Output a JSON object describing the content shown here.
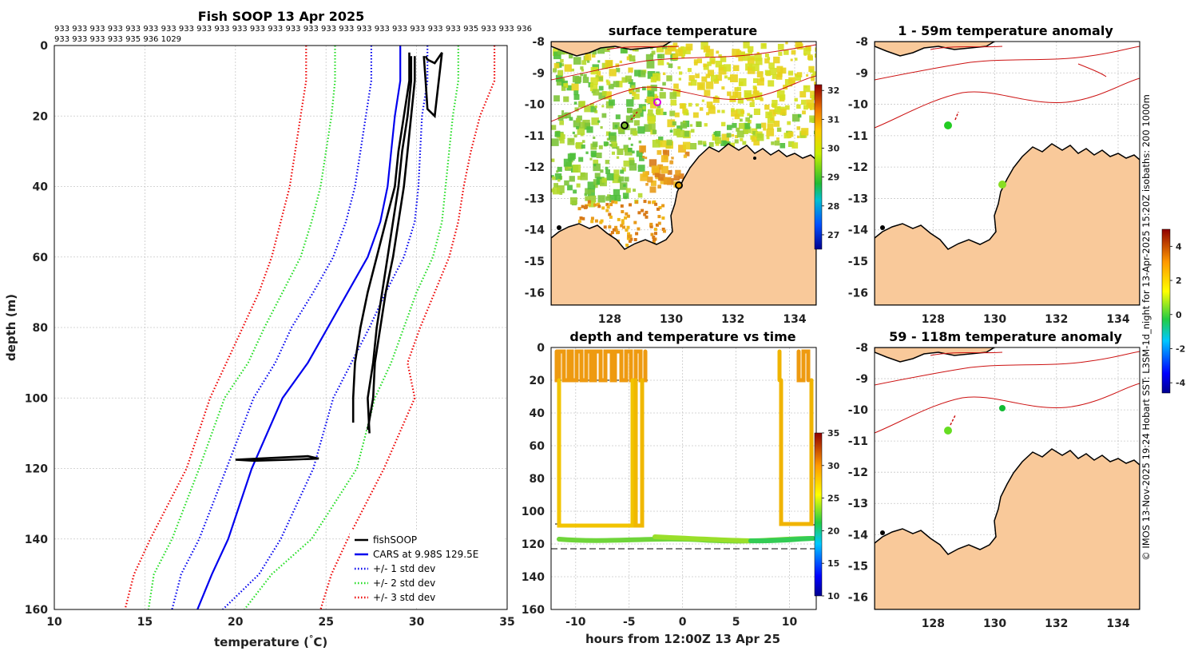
{
  "chart_data": [
    {
      "type": "line",
      "title": "Fish SOOP 13 Apr 2025",
      "profile_ids": [
        "933 933 933 933 933 933 933 933 933 933 933 933 933 933 933 933 933 933 933 933 933 933 933 935 933 933 936",
        "933 933 933 933 935 936 1029"
      ],
      "xlabel": "temperature",
      "xlabel_unit": "(°C)",
      "ylabel": "depth (m)",
      "xlim": [
        10,
        35
      ],
      "ylim": [
        0,
        160
      ],
      "xticks": [
        10,
        15,
        20,
        25,
        30,
        35
      ],
      "yticks": [
        0,
        20,
        40,
        60,
        80,
        100,
        120,
        140,
        160
      ],
      "legend": [
        "fishSOOP",
        "CARS at 9.98S 129.5E",
        "+/- 1 std dev",
        "+/- 2 std dev",
        "+/- 3 std dev"
      ],
      "series": [
        {
          "name": "CARS at 9.98S 129.5E",
          "color": "#0000ee",
          "style": "solid",
          "x": [
            29.1,
            29.1,
            28.8,
            28.6,
            28.4,
            28.0,
            27.3,
            26.2,
            25.1,
            24.0,
            22.6,
            20.9,
            19.6,
            18.7,
            17.9
          ],
          "y": [
            0,
            10,
            20,
            30,
            40,
            50,
            60,
            70,
            80,
            90,
            100,
            120,
            140,
            150,
            160
          ]
        },
        {
          "name": "+1 std",
          "color": "#0000ee",
          "style": "dotted",
          "x": [
            27.5,
            27.5,
            27.2,
            26.9,
            26.6,
            26.1,
            25.4,
            24.3,
            23.1,
            22.2,
            21.0,
            19.5,
            18.0,
            17.0,
            16.5
          ],
          "y": [
            0,
            10,
            20,
            30,
            40,
            50,
            60,
            70,
            80,
            90,
            100,
            120,
            140,
            150,
            160
          ]
        },
        {
          "name": "-1 std",
          "color": "#0000ee",
          "style": "dotted",
          "x": [
            30.6,
            30.6,
            30.3,
            30.2,
            30.1,
            29.9,
            29.3,
            28.3,
            27.4,
            26.4,
            25.4,
            24.3,
            22.5,
            21.3,
            19.3
          ],
          "y": [
            0,
            10,
            20,
            30,
            40,
            50,
            60,
            70,
            80,
            90,
            100,
            120,
            140,
            150,
            160
          ]
        },
        {
          "name": "+2 std",
          "color": "#22dd22",
          "style": "dotted",
          "x": [
            25.5,
            25.5,
            25.3,
            25.0,
            24.7,
            24.2,
            23.6,
            22.6,
            21.6,
            20.7,
            19.4,
            18.0,
            16.5,
            15.5,
            15.2
          ],
          "y": [
            0,
            10,
            20,
            30,
            40,
            50,
            60,
            70,
            80,
            90,
            100,
            120,
            140,
            150,
            160
          ]
        },
        {
          "name": "-2 std",
          "color": "#22dd22",
          "style": "dotted",
          "x": [
            32.3,
            32.3,
            32.0,
            31.8,
            31.6,
            31.4,
            30.9,
            30.0,
            29.3,
            28.6,
            27.7,
            26.7,
            24.2,
            22.0,
            20.5
          ],
          "y": [
            0,
            10,
            20,
            30,
            40,
            50,
            60,
            70,
            80,
            90,
            100,
            120,
            140,
            150,
            160
          ]
        },
        {
          "name": "+3 std",
          "color": "#ee0000",
          "style": "dotted",
          "x": [
            23.9,
            23.9,
            23.6,
            23.3,
            23.0,
            22.5,
            22.0,
            21.3,
            20.4,
            19.5,
            18.6,
            17.3,
            15.3,
            14.4,
            13.9
          ],
          "y": [
            0,
            10,
            20,
            30,
            40,
            50,
            60,
            70,
            80,
            90,
            100,
            120,
            140,
            150,
            160
          ]
        },
        {
          "name": "-3 std",
          "color": "#ee0000",
          "style": "dotted",
          "x": [
            34.3,
            34.3,
            33.5,
            33.0,
            32.6,
            32.3,
            31.8,
            31.0,
            30.2,
            29.5,
            29.9,
            28.2,
            26.2,
            25.3,
            24.7
          ],
          "y": [
            0,
            10,
            20,
            30,
            40,
            50,
            60,
            70,
            80,
            90,
            100,
            120,
            140,
            150,
            160
          ]
        },
        {
          "name": "fishSOOP profile a",
          "color": "#000000",
          "style": "solid",
          "x": [
            29.6,
            29.6,
            29.3,
            29.0,
            28.8,
            28.3,
            27.8,
            27.3,
            26.9,
            26.6,
            26.5,
            26.5
          ],
          "y": [
            2,
            10,
            20,
            30,
            40,
            50,
            60,
            70,
            80,
            90,
            100,
            107
          ]
        },
        {
          "name": "fishSOOP profile b",
          "color": "#000000",
          "style": "solid",
          "x": [
            29.7,
            29.7,
            29.5,
            29.2,
            29.0,
            28.7,
            28.4,
            28.1,
            27.8,
            27.6,
            27.3,
            27.4
          ],
          "y": [
            3,
            10,
            20,
            30,
            40,
            50,
            60,
            70,
            80,
            90,
            100,
            110
          ]
        },
        {
          "name": "fishSOOP profile c",
          "color": "#000000",
          "style": "solid",
          "x": [
            29.9,
            29.9,
            29.7,
            29.5,
            29.3,
            29.0,
            28.7,
            28.3,
            28.0,
            27.7,
            27.6,
            27.3
          ],
          "y": [
            3,
            10,
            20,
            30,
            40,
            50,
            60,
            70,
            80,
            90,
            100,
            109
          ]
        },
        {
          "name": "fishSOOP tow",
          "color": "#000000",
          "style": "solid",
          "x": [
            20.0,
            22.0,
            24.0,
            24.6,
            23.0,
            21.0,
            20.0
          ],
          "y": [
            117.5,
            117.0,
            116.5,
            117.2,
            117.5,
            117.8,
            117.5
          ]
        },
        {
          "name": "fishSOOP surface",
          "color": "#000000",
          "style": "solid",
          "x": [
            30.4,
            30.5,
            30.6,
            31.0,
            31.4,
            31.0,
            30.6,
            30.5
          ],
          "y": [
            3,
            10,
            18,
            20,
            2,
            5,
            4,
            3
          ]
        }
      ]
    },
    {
      "type": "heatmap",
      "title": "surface temperature",
      "xticks": [
        128,
        130,
        132,
        134
      ],
      "yticks": [
        -8,
        -9,
        -10,
        -11,
        -12,
        -13,
        -14,
        -15,
        -16
      ],
      "xlim": [
        126.1,
        134.7
      ],
      "ylim": [
        -16.4,
        -8
      ],
      "colorbar_ticks": [
        27,
        28,
        29,
        30,
        31,
        32
      ],
      "colorbar_range": [
        26.5,
        32.2
      ]
    },
    {
      "type": "scatter",
      "title": "depth and temperature vs time",
      "xlabel": "hours from 12:00Z 13 Apr 25",
      "xticks": [
        -10,
        -5,
        0,
        5,
        10
      ],
      "yticks": [
        0,
        20,
        40,
        60,
        80,
        100,
        120,
        140,
        160
      ],
      "xlim": [
        -12.3,
        12.5
      ],
      "ylim": [
        0,
        160
      ],
      "colorbar_ticks": [
        10,
        15,
        20,
        25,
        30,
        35
      ],
      "colorbar_range": [
        10,
        35
      ]
    },
    {
      "type": "heatmap",
      "title": "1 - 59m temperature anomaly",
      "xticks": [
        128,
        130,
        132,
        134
      ],
      "yticks": [
        -8,
        -9,
        -10,
        -11,
        -12,
        -13,
        -14,
        -15,
        -16
      ],
      "xlim": [
        126.1,
        134.7
      ],
      "ylim": [
        -16.4,
        -8
      ]
    },
    {
      "type": "heatmap",
      "title": "59 - 118m temperature anomaly",
      "xticks": [
        128,
        130,
        132,
        134
      ],
      "yticks": [
        -8,
        -9,
        -10,
        -11,
        -12,
        -13,
        -14,
        -15,
        -16
      ],
      "xlim": [
        126.1,
        134.7
      ],
      "ylim": [
        -16.4,
        -8
      ],
      "colorbar_ticks": [
        -4,
        -2,
        0,
        2,
        4
      ],
      "colorbar_range": [
        -4.6,
        5
      ]
    }
  ],
  "credit": "© IMOS 13-Nov-2025 19:24 Hobart SST: L3SM-1d_night for 13-Apr-2025 15:20Z isobaths: 200  1000m",
  "colors": {
    "land": "#f9c99a",
    "coast": "#000000",
    "isobath": "#cc1111"
  }
}
